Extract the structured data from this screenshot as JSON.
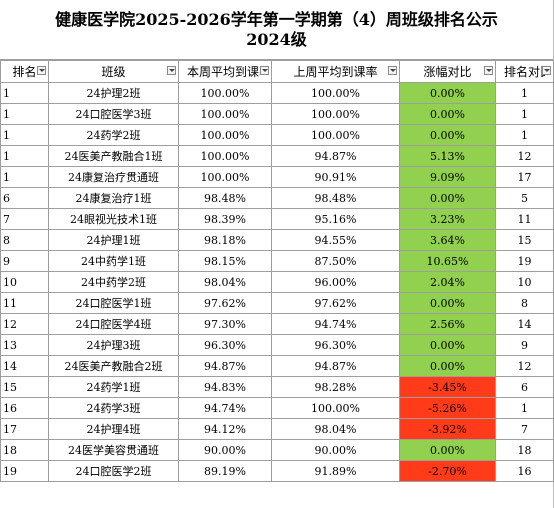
{
  "title": {
    "line1": "健康医学院2025-2026学年第一学期第（4）周班级排名公示",
    "line2": "2024级"
  },
  "headers": [
    "排名",
    "班级",
    "本周平均到课率",
    "上周平均到课率",
    "涨幅对比",
    "排名对比"
  ],
  "rows": [
    {
      "rank": "1",
      "class": "24护理2班",
      "this_week": "100.00%",
      "last_week": "100.00%",
      "change": "0.00%",
      "prev_rank": "1",
      "status": "green"
    },
    {
      "rank": "1",
      "class": "24口腔医学3班",
      "this_week": "100.00%",
      "last_week": "100.00%",
      "change": "0.00%",
      "prev_rank": "1",
      "status": "green"
    },
    {
      "rank": "1",
      "class": "24药学2班",
      "this_week": "100.00%",
      "last_week": "100.00%",
      "change": "0.00%",
      "prev_rank": "1",
      "status": "green"
    },
    {
      "rank": "1",
      "class": "24医美产教融合1班",
      "this_week": "100.00%",
      "last_week": "94.87%",
      "change": "5.13%",
      "prev_rank": "12",
      "status": "green"
    },
    {
      "rank": "1",
      "class": "24康复治疗贯通班",
      "this_week": "100.00%",
      "last_week": "90.91%",
      "change": "9.09%",
      "prev_rank": "17",
      "status": "green"
    },
    {
      "rank": "6",
      "class": "24康复治疗1班",
      "this_week": "98.48%",
      "last_week": "98.48%",
      "change": "0.00%",
      "prev_rank": "5",
      "status": "green"
    },
    {
      "rank": "7",
      "class": "24眼视光技术1班",
      "this_week": "98.39%",
      "last_week": "95.16%",
      "change": "3.23%",
      "prev_rank": "11",
      "status": "green"
    },
    {
      "rank": "8",
      "class": "24护理1班",
      "this_week": "98.18%",
      "last_week": "94.55%",
      "change": "3.64%",
      "prev_rank": "15",
      "status": "green"
    },
    {
      "rank": "9",
      "class": "24中药学1班",
      "this_week": "98.15%",
      "last_week": "87.50%",
      "change": "10.65%",
      "prev_rank": "19",
      "status": "green"
    },
    {
      "rank": "10",
      "class": "24中药学2班",
      "this_week": "98.04%",
      "last_week": "96.00%",
      "change": "2.04%",
      "prev_rank": "10",
      "status": "green"
    },
    {
      "rank": "11",
      "class": "24口腔医学1班",
      "this_week": "97.62%",
      "last_week": "97.62%",
      "change": "0.00%",
      "prev_rank": "8",
      "status": "green"
    },
    {
      "rank": "12",
      "class": "24口腔医学4班",
      "this_week": "97.30%",
      "last_week": "94.74%",
      "change": "2.56%",
      "prev_rank": "14",
      "status": "green"
    },
    {
      "rank": "13",
      "class": "24护理3班",
      "this_week": "96.30%",
      "last_week": "96.30%",
      "change": "0.00%",
      "prev_rank": "9",
      "status": "green"
    },
    {
      "rank": "14",
      "class": "24医美产教融合2班",
      "this_week": "94.87%",
      "last_week": "94.87%",
      "change": "0.00%",
      "prev_rank": "12",
      "status": "green"
    },
    {
      "rank": "15",
      "class": "24药学1班",
      "this_week": "94.83%",
      "last_week": "98.28%",
      "change": "-3.45%",
      "prev_rank": "6",
      "status": "red"
    },
    {
      "rank": "16",
      "class": "24药学3班",
      "this_week": "94.74%",
      "last_week": "100.00%",
      "change": "-5.26%",
      "prev_rank": "1",
      "status": "red"
    },
    {
      "rank": "17",
      "class": "24护理4班",
      "this_week": "94.12%",
      "last_week": "98.04%",
      "change": "-3.92%",
      "prev_rank": "7",
      "status": "red"
    },
    {
      "rank": "18",
      "class": "24医学美容贯通班",
      "this_week": "90.00%",
      "last_week": "90.00%",
      "change": "0.00%",
      "prev_rank": "18",
      "status": "green"
    },
    {
      "rank": "19",
      "class": "24口腔医学2班",
      "this_week": "89.19%",
      "last_week": "91.89%",
      "change": "-2.70%",
      "prev_rank": "16",
      "status": "red"
    }
  ],
  "colors": {
    "green": "#92d050",
    "red": "#ff3b19"
  }
}
